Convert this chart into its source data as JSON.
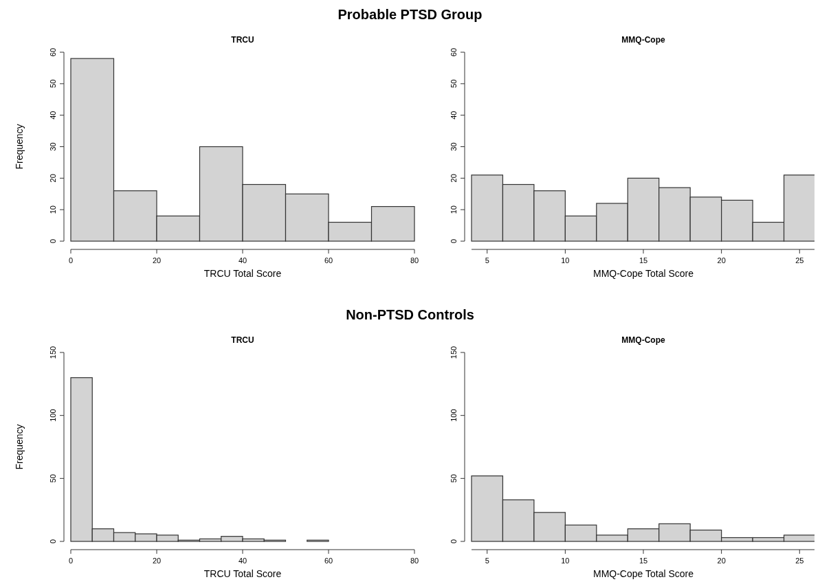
{
  "chart_data": [
    {
      "type": "histogram",
      "title": "TRCU",
      "xlabel": "TRCU Total Score",
      "ylabel": "Frequency",
      "annotations": [
        "Probable PTSD Group"
      ],
      "bins": [
        0,
        10,
        20,
        30,
        40,
        50,
        60,
        70,
        80
      ],
      "values": [
        58,
        16,
        8,
        30,
        18,
        15,
        6,
        11
      ],
      "color": "#d3d3d3",
      "xlim": [
        0,
        80
      ],
      "xticks": [
        0,
        20,
        40,
        60,
        80
      ],
      "ylim": [
        0,
        60
      ],
      "yticks": [
        0,
        10,
        20,
        30,
        40,
        50,
        60
      ]
    },
    {
      "type": "histogram",
      "title": "MMQ-Cope",
      "xlabel": "MMQ-Cope Total Score",
      "bins": [
        4,
        6,
        8,
        10,
        12,
        14,
        16,
        18,
        20,
        22,
        24,
        26
      ],
      "values": [
        21,
        18,
        16,
        8,
        12,
        20,
        17,
        14,
        13,
        6,
        21
      ],
      "color": "#d3d3d3",
      "xlim": [
        4,
        26
      ],
      "xticks": [
        5,
        10,
        15,
        20,
        25
      ],
      "ylim": [
        0,
        60
      ],
      "yticks": [
        0,
        10,
        20,
        30,
        40,
        50,
        60
      ]
    },
    {
      "type": "histogram",
      "title": "TRCU",
      "xlabel": "TRCU Total Score",
      "ylabel": "Frequency",
      "annotations": [
        "Non-PTSD Controls"
      ],
      "bins": [
        0,
        5,
        10,
        15,
        20,
        25,
        30,
        35,
        40,
        45,
        50,
        55,
        60
      ],
      "values": [
        130,
        10,
        7,
        6,
        5,
        1,
        2,
        4,
        2,
        1,
        0,
        1
      ],
      "color": "#d3d3d3",
      "xlim": [
        0,
        80
      ],
      "xticks": [
        0,
        20,
        40,
        60,
        80
      ],
      "ylim": [
        0,
        150
      ],
      "yticks": [
        0,
        50,
        100,
        150
      ]
    },
    {
      "type": "histogram",
      "title": "MMQ-Cope",
      "xlabel": "MMQ-Cope Total Score",
      "bins": [
        4,
        6,
        8,
        10,
        12,
        14,
        16,
        18,
        20,
        22,
        24,
        26
      ],
      "values": [
        52,
        33,
        23,
        13,
        5,
        10,
        14,
        9,
        3,
        3,
        5
      ],
      "color": "#d3d3d3",
      "xlim": [
        4,
        26
      ],
      "xticks": [
        5,
        10,
        15,
        20,
        25
      ],
      "ylim": [
        0,
        150
      ],
      "yticks": [
        0,
        50,
        100,
        150
      ]
    }
  ]
}
